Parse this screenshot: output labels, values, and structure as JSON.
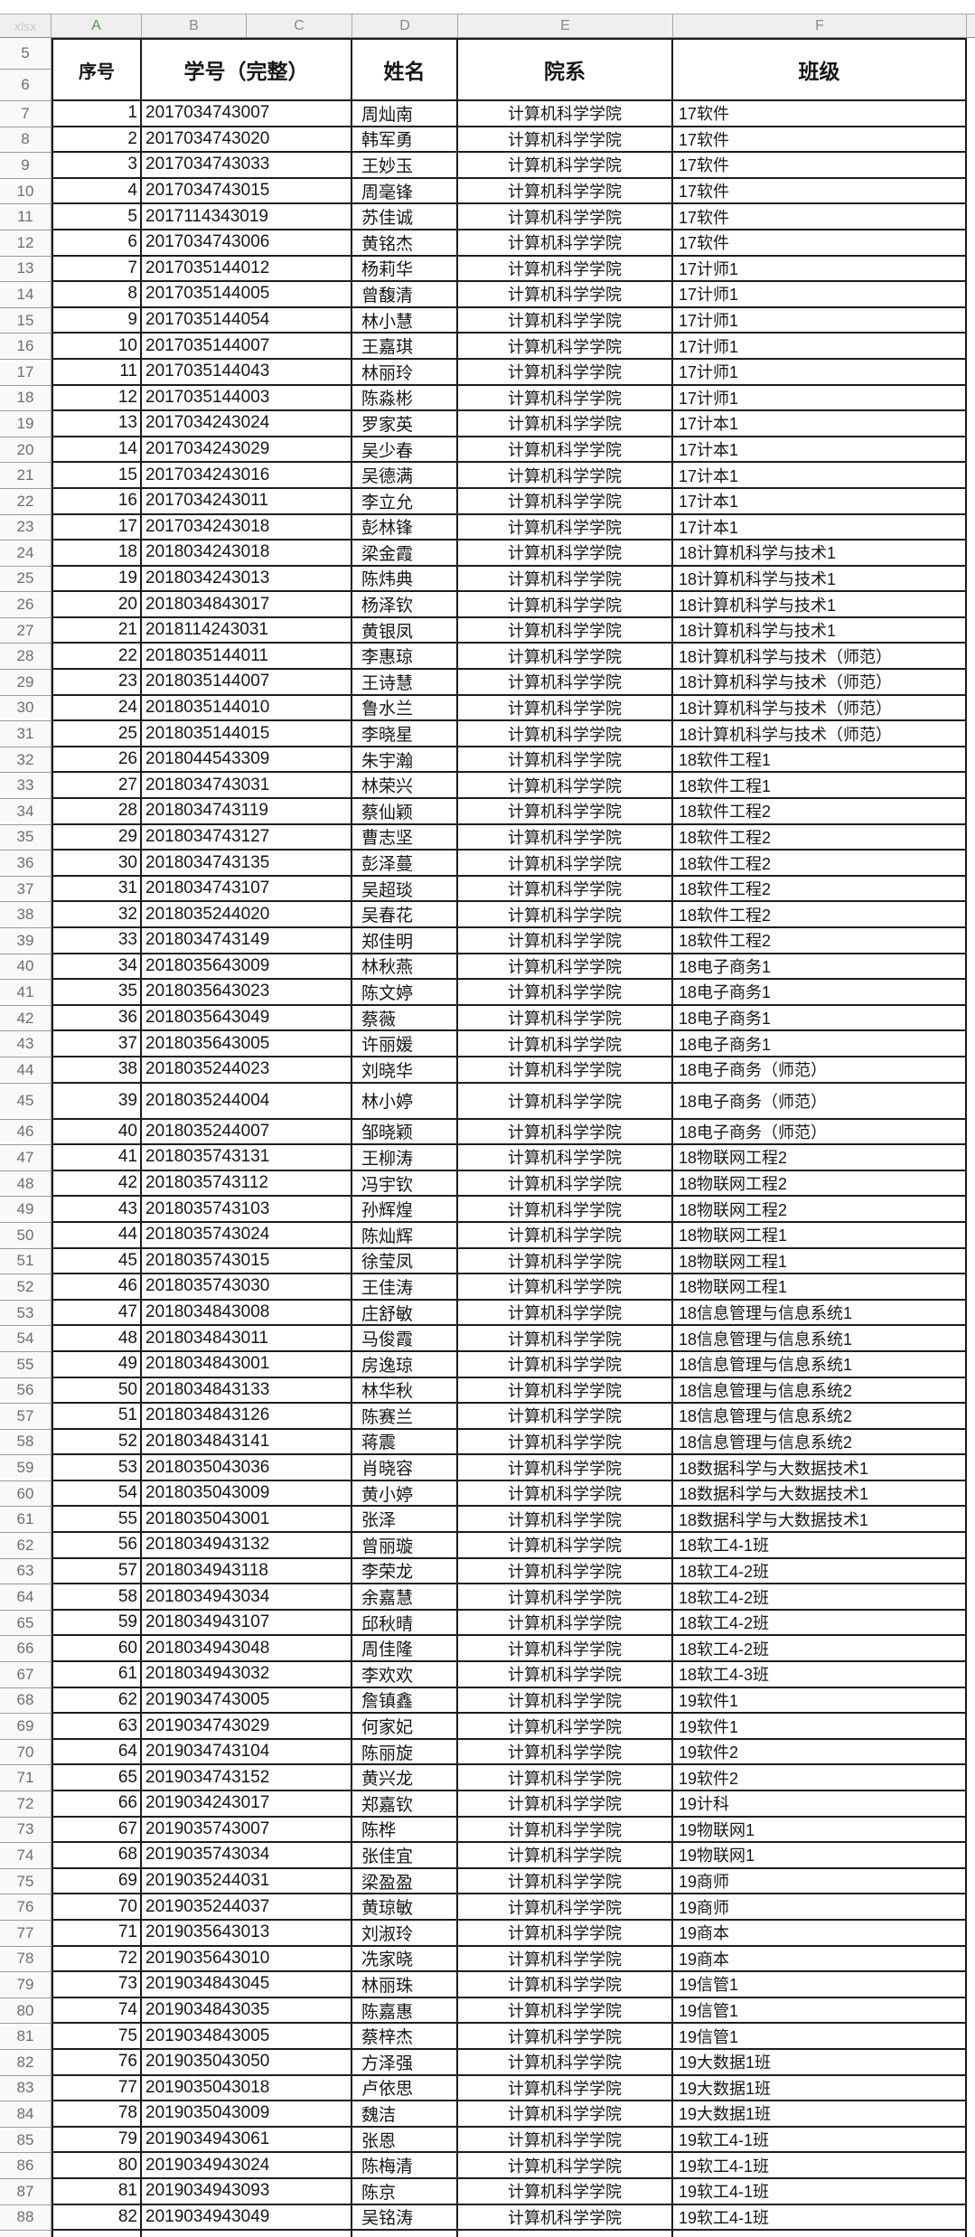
{
  "sheet": {
    "corner_label": "xlsx",
    "column_headers": [
      "A",
      "B",
      "C",
      "D",
      "E",
      "F"
    ],
    "header_row_numbers": [
      "5",
      "6"
    ],
    "colors": {
      "active_column_letter": "#3fa14e",
      "grid_border_dark": "#1c1c1c",
      "band_background": "#f0efef",
      "row_header_background": "#f9f9f9",
      "row_header_text": "#6e6e6e"
    }
  },
  "table": {
    "headers": {
      "serial": "序号",
      "student_id": "学号（完整）",
      "name": "姓名",
      "department": "院系",
      "class": "班级"
    },
    "department_value": "计算机科学学院",
    "tall_excel_row": 45,
    "column_fields": [
      "excel_row",
      "serial",
      "student_id",
      "name",
      "class"
    ],
    "rows": [
      [
        7,
        1,
        "2017034743007",
        "周灿南",
        "17软件"
      ],
      [
        8,
        2,
        "2017034743020",
        "韩军勇",
        "17软件"
      ],
      [
        9,
        3,
        "2017034743033",
        "王妙玉",
        "17软件"
      ],
      [
        10,
        4,
        "2017034743015",
        "周毫锋",
        "17软件"
      ],
      [
        11,
        5,
        "2017114343019",
        "苏佳诚",
        "17软件"
      ],
      [
        12,
        6,
        "2017034743006",
        "黄铭杰",
        "17软件"
      ],
      [
        13,
        7,
        "2017035144012",
        "杨莉华",
        "17计师1"
      ],
      [
        14,
        8,
        "2017035144005",
        "曾馥清",
        "17计师1"
      ],
      [
        15,
        9,
        "2017035144054",
        "林小慧",
        "17计师1"
      ],
      [
        16,
        10,
        "2017035144007",
        "王嘉琪",
        "17计师1"
      ],
      [
        17,
        11,
        "2017035144043",
        "林丽玲",
        "17计师1"
      ],
      [
        18,
        12,
        "2017035144003",
        "陈淼彬",
        "17计师1"
      ],
      [
        19,
        13,
        "2017034243024",
        "罗家英",
        "17计本1"
      ],
      [
        20,
        14,
        "2017034243029",
        "吴少春",
        "17计本1"
      ],
      [
        21,
        15,
        "2017034243016",
        "吴德满",
        "17计本1"
      ],
      [
        22,
        16,
        "2017034243011",
        "李立允",
        "17计本1"
      ],
      [
        23,
        17,
        "2017034243018",
        "彭林锋",
        "17计本1"
      ],
      [
        24,
        18,
        "2018034243018",
        "梁金霞",
        "18计算机科学与技术1"
      ],
      [
        25,
        19,
        "2018034243013",
        "陈炜典",
        "18计算机科学与技术1"
      ],
      [
        26,
        20,
        "2018034843017",
        "杨泽钦",
        "18计算机科学与技术1"
      ],
      [
        27,
        21,
        "2018114243031",
        "黄银凤",
        "18计算机科学与技术1"
      ],
      [
        28,
        22,
        "2018035144011",
        "李惠琼",
        "18计算机科学与技术（师范）"
      ],
      [
        29,
        23,
        "2018035144007",
        "王诗慧",
        "18计算机科学与技术（师范）"
      ],
      [
        30,
        24,
        "2018035144010",
        "鲁水兰",
        "18计算机科学与技术（师范）"
      ],
      [
        31,
        25,
        "2018035144015",
        "李晓星",
        "18计算机科学与技术（师范）"
      ],
      [
        32,
        26,
        "2018044543309",
        "朱宇瀚",
        "18软件工程1"
      ],
      [
        33,
        27,
        "2018034743031",
        "林荣兴",
        "18软件工程1"
      ],
      [
        34,
        28,
        "2018034743119",
        "蔡仙颖",
        "18软件工程2"
      ],
      [
        35,
        29,
        "2018034743127",
        "曹志坚",
        "18软件工程2"
      ],
      [
        36,
        30,
        "2018034743135",
        "彭泽蔓",
        "18软件工程2"
      ],
      [
        37,
        31,
        "2018034743107",
        "吴超琰",
        "18软件工程2"
      ],
      [
        38,
        32,
        "2018035244020",
        "吴春花",
        "18软件工程2"
      ],
      [
        39,
        33,
        "2018034743149",
        "郑佳明",
        "18软件工程2"
      ],
      [
        40,
        34,
        "2018035643009",
        "林秋燕",
        "18电子商务1"
      ],
      [
        41,
        35,
        "2018035643023",
        "陈文婷",
        "18电子商务1"
      ],
      [
        42,
        36,
        "2018035643049",
        "蔡薇",
        "18电子商务1"
      ],
      [
        43,
        37,
        "2018035643005",
        "许丽媛",
        "18电子商务1"
      ],
      [
        44,
        38,
        "2018035244023",
        "刘晓华",
        "18电子商务（师范）"
      ],
      [
        45,
        39,
        "2018035244004",
        "林小婷",
        "18电子商务（师范）"
      ],
      [
        46,
        40,
        "2018035244007",
        "邹晓颖",
        "18电子商务（师范）"
      ],
      [
        47,
        41,
        "2018035743131",
        "王柳涛",
        "18物联网工程2"
      ],
      [
        48,
        42,
        "2018035743112",
        "冯宇钦",
        "18物联网工程2"
      ],
      [
        49,
        43,
        "2018035743103",
        "孙辉煌",
        "18物联网工程2"
      ],
      [
        50,
        44,
        "2018035743024",
        "陈灿辉",
        "18物联网工程1"
      ],
      [
        51,
        45,
        "2018035743015",
        "徐莹凤",
        "18物联网工程1"
      ],
      [
        52,
        46,
        "2018035743030",
        "王佳涛",
        "18物联网工程1"
      ],
      [
        53,
        47,
        "2018034843008",
        "庄舒敏",
        "18信息管理与信息系统1"
      ],
      [
        54,
        48,
        "2018034843011",
        "马俊霞",
        "18信息管理与信息系统1"
      ],
      [
        55,
        49,
        "2018034843001",
        "房逸琼",
        "18信息管理与信息系统1"
      ],
      [
        56,
        50,
        "2018034843133",
        "林华秋",
        "18信息管理与信息系统2"
      ],
      [
        57,
        51,
        "2018034843126",
        "陈赛兰",
        "18信息管理与信息系统2"
      ],
      [
        58,
        52,
        "2018034843141",
        "蒋震",
        "18信息管理与信息系统2"
      ],
      [
        59,
        53,
        "2018035043036",
        "肖晓容",
        "18数据科学与大数据技术1"
      ],
      [
        60,
        54,
        "2018035043009",
        "黄小婷",
        "18数据科学与大数据技术1"
      ],
      [
        61,
        55,
        "2018035043001",
        "张泽",
        "18数据科学与大数据技术1"
      ],
      [
        62,
        56,
        "2018034943132",
        "曾丽璇",
        "18软工4-1班"
      ],
      [
        63,
        57,
        "2018034943118",
        "李荣龙",
        "18软工4-2班"
      ],
      [
        64,
        58,
        "2018034943034",
        "余嘉慧",
        "18软工4-2班"
      ],
      [
        65,
        59,
        "2018034943107",
        "邱秋晴",
        "18软工4-2班"
      ],
      [
        66,
        60,
        "2018034943048",
        "周佳隆",
        "18软工4-2班"
      ],
      [
        67,
        61,
        "2018034943032",
        "李欢欢",
        "18软工4-3班"
      ],
      [
        68,
        62,
        "2019034743005",
        "詹镇鑫",
        "19软件1"
      ],
      [
        69,
        63,
        "2019034743029",
        "何家妃",
        "19软件1"
      ],
      [
        70,
        64,
        "2019034743104",
        "陈丽旋",
        "19软件2"
      ],
      [
        71,
        65,
        "2019034743152",
        "黄兴龙",
        "19软件2"
      ],
      [
        72,
        66,
        "2019034243017",
        "郑嘉钦",
        "19计科"
      ],
      [
        73,
        67,
        "2019035743007",
        "陈桦",
        "19物联网1"
      ],
      [
        74,
        68,
        "2019035743034",
        "张佳宜",
        "19物联网1"
      ],
      [
        75,
        69,
        "2019035244031",
        "梁盈盈",
        "19商师"
      ],
      [
        76,
        70,
        "2019035244037",
        "黄琼敏",
        "19商师"
      ],
      [
        77,
        71,
        "2019035643013",
        "刘淑玲",
        "19商本"
      ],
      [
        78,
        72,
        "2019035643010",
        "冼家晓",
        "19商本"
      ],
      [
        79,
        73,
        "2019034843045",
        "林丽珠",
        "19信管1"
      ],
      [
        80,
        74,
        "2019034843035",
        "陈嘉惠",
        "19信管1"
      ],
      [
        81,
        75,
        "2019034843005",
        "蔡梓杰",
        "19信管1"
      ],
      [
        82,
        76,
        "2019035043050",
        "方泽强",
        "19大数据1班"
      ],
      [
        83,
        77,
        "2019035043018",
        "卢依思",
        "19大数据1班"
      ],
      [
        84,
        78,
        "2019035043009",
        "魏洁",
        "19大数据1班"
      ],
      [
        85,
        79,
        "2019034943061",
        "张恩",
        "19软工4-1班"
      ],
      [
        86,
        80,
        "2019034943024",
        "陈梅清",
        "19软工4-1班"
      ],
      [
        87,
        81,
        "2019034943093",
        "陈京",
        "19软工4-1班"
      ],
      [
        88,
        82,
        "2019034943049",
        "吴铭涛",
        "19软工4-1班"
      ]
    ]
  }
}
